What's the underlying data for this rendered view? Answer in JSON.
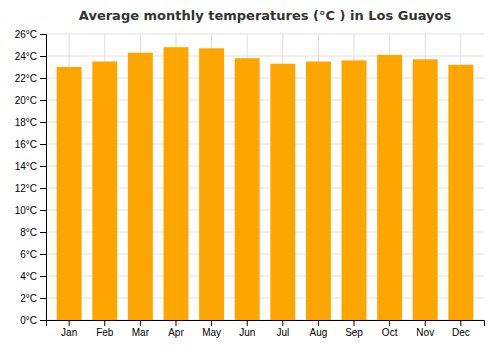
{
  "chart_data": {
    "type": "bar",
    "title": "Average monthly temperatures (°C ) in Los Guayos",
    "categories": [
      "Jan",
      "Feb",
      "Mar",
      "Apr",
      "May",
      "Jun",
      "Jul",
      "Aug",
      "Sep",
      "Oct",
      "Nov",
      "Dec"
    ],
    "values": [
      23.0,
      23.5,
      24.3,
      24.8,
      24.7,
      23.8,
      23.3,
      23.5,
      23.6,
      24.1,
      23.7,
      23.2
    ],
    "color": "#FFA500",
    "ylim": [
      0,
      26
    ],
    "yticks": [
      {
        "value": 0,
        "label": "0°C"
      },
      {
        "value": 2,
        "label": "2°C"
      },
      {
        "value": 4,
        "label": "4°C"
      },
      {
        "value": 6,
        "label": "6°C"
      },
      {
        "value": 8,
        "label": "8°C"
      },
      {
        "value": 10,
        "label": "10°C"
      },
      {
        "value": 12,
        "label": "12°C"
      },
      {
        "value": 14,
        "label": "14°C"
      },
      {
        "value": 16,
        "label": "16°C"
      },
      {
        "value": 18,
        "label": "18°C"
      },
      {
        "value": 20,
        "label": "20°C"
      },
      {
        "value": 22,
        "label": "22°C"
      },
      {
        "value": 24,
        "label": "24°C"
      },
      {
        "value": 26,
        "label": "26°C"
      }
    ],
    "grid": true
  }
}
